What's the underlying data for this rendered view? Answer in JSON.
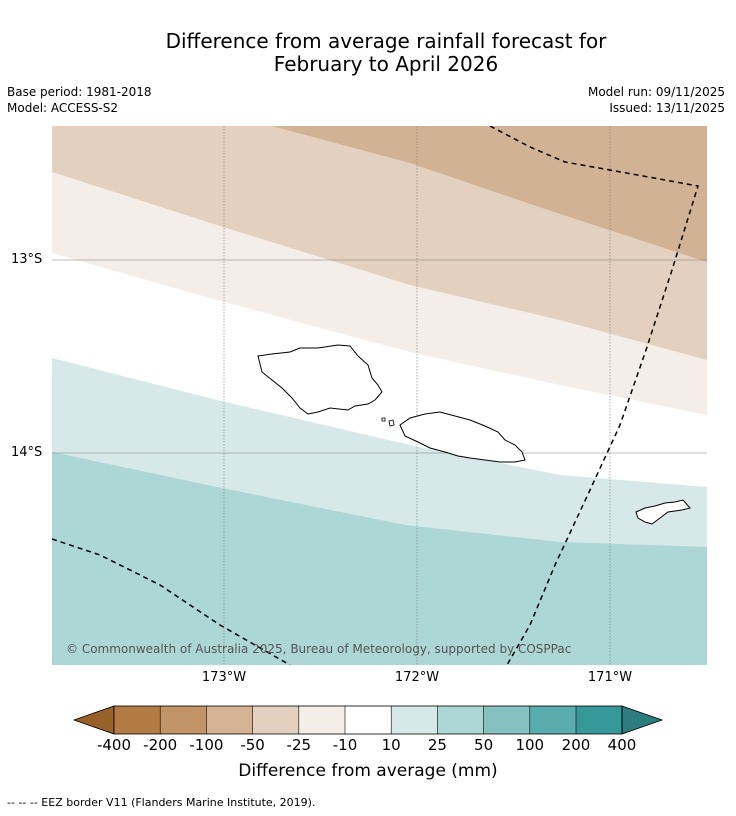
{
  "title_line1": "Difference from average rainfall forecast for",
  "title_line2": "February to April 2026",
  "meta": {
    "base_period": "Base period: 1981-2018",
    "model": "Model: ACCESS-S2",
    "model_run": "Model run: 09/11/2025",
    "issued": "Issued: 13/11/2025"
  },
  "map": {
    "lat_labels": [
      "13°S",
      "14°S"
    ],
    "lon_labels": [
      "173°W",
      "172°W",
      "171°W"
    ],
    "copyright": "© Commonwealth of Australia 2025, Bureau of Meteorology, supported by COSPPac",
    "zone_colors": [
      "#d2b294",
      "#e3d0bf",
      "#f5ede8",
      "#ffffff",
      "#d6e9e8",
      "#add6d6"
    ]
  },
  "colorbar": {
    "label": "Difference from average (mm)",
    "ticks": [
      "-400",
      "-200",
      "-100",
      "-50",
      "-25",
      "-10",
      "10",
      "25",
      "50",
      "100",
      "200",
      "400"
    ],
    "colors": [
      "#98602a",
      "#b17b43",
      "#c39368",
      "#d3b394",
      "#e3d0bf",
      "#f5ede8",
      "#ffffff",
      "#d6e9e8",
      "#add6d6",
      "#85c1c0",
      "#5aadad",
      "#369999",
      "#2b7d7d"
    ]
  },
  "legend_note": "--  --  -- EEZ border V11 (Flanders Marine Institute, 2019)."
}
